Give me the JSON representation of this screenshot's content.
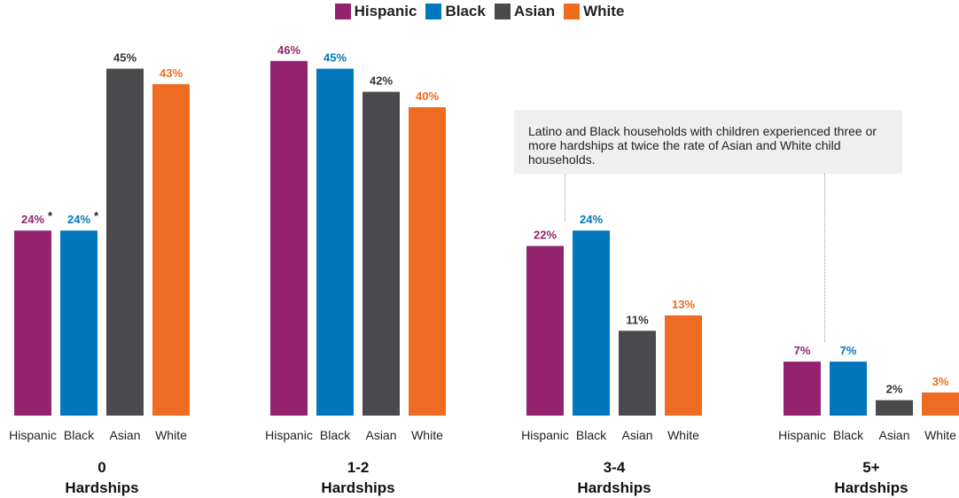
{
  "legend": [
    {
      "name": "Hispanic",
      "color": "#93236f"
    },
    {
      "name": "Black",
      "color": "#0277bd"
    },
    {
      "name": "Asian",
      "color": "#4a4a4c"
    },
    {
      "name": "White",
      "color": "#f06b22"
    }
  ],
  "annotation": "Latino and Black households with children experienced three or more hardships at twice the rate of Asian and White child households.",
  "chart_data": {
    "type": "bar",
    "series_names": [
      "Hispanic",
      "Black",
      "Asian",
      "White"
    ],
    "colors": [
      "#93236f",
      "#0277bd",
      "#4a4a4c",
      "#f06b22"
    ],
    "ylim": [
      0,
      50
    ],
    "groups": [
      {
        "title_line1": "0",
        "title_line2": "Hardships",
        "values": [
          24,
          24,
          45,
          43
        ],
        "labels": [
          "24%",
          "24%",
          "45%",
          "43%"
        ],
        "asterisks": [
          "*",
          "*",
          "",
          ""
        ]
      },
      {
        "title_line1": "1-2",
        "title_line2": "Hardships",
        "values": [
          46,
          45,
          42,
          40
        ],
        "labels": [
          "46%",
          "45%",
          "42%",
          "40%"
        ],
        "asterisks": [
          "",
          "",
          "",
          ""
        ]
      },
      {
        "title_line1": "3-4",
        "title_line2": "Hardships",
        "values": [
          22,
          24,
          11,
          13
        ],
        "labels": [
          "22%",
          "24%",
          "11%",
          "13%"
        ],
        "asterisks": [
          "",
          "",
          "",
          ""
        ]
      },
      {
        "title_line1": "5+",
        "title_line2": "Hardships",
        "values": [
          7,
          7,
          2,
          3
        ],
        "labels": [
          "7%",
          "7%",
          "2%",
          "3%"
        ],
        "asterisks": [
          "",
          "",
          "",
          ""
        ]
      }
    ]
  }
}
